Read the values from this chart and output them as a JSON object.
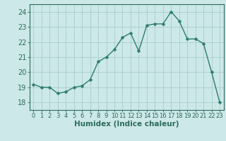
{
  "x": [
    0,
    1,
    2,
    3,
    4,
    5,
    6,
    7,
    8,
    9,
    10,
    11,
    12,
    13,
    14,
    15,
    16,
    17,
    18,
    19,
    20,
    21,
    22,
    23
  ],
  "y": [
    19.2,
    19.0,
    19.0,
    18.6,
    18.7,
    19.0,
    19.1,
    19.5,
    20.7,
    21.0,
    21.5,
    22.3,
    22.6,
    21.4,
    23.1,
    23.2,
    23.2,
    24.0,
    23.4,
    22.2,
    22.2,
    21.9,
    20.0,
    18.0
  ],
  "line_color": "#2d7d6e",
  "marker": "D",
  "marker_size": 2.5,
  "bg_color": "#cce8e8",
  "grid_color": "#aacccc",
  "xlabel": "Humidex (Indice chaleur)",
  "ylim": [
    17.5,
    24.5
  ],
  "xlim": [
    -0.5,
    23.5
  ],
  "yticks": [
    18,
    19,
    20,
    21,
    22,
    23,
    24
  ],
  "xticks": [
    0,
    1,
    2,
    3,
    4,
    5,
    6,
    7,
    8,
    9,
    10,
    11,
    12,
    13,
    14,
    15,
    16,
    17,
    18,
    19,
    20,
    21,
    22,
    23
  ],
  "tick_color": "#2d6b5e",
  "label_color": "#2d6b5e",
  "axis_color": "#2d6b5e",
  "xlabel_fontsize": 7.5,
  "ytick_fontsize": 7.0,
  "xtick_fontsize": 6.0
}
